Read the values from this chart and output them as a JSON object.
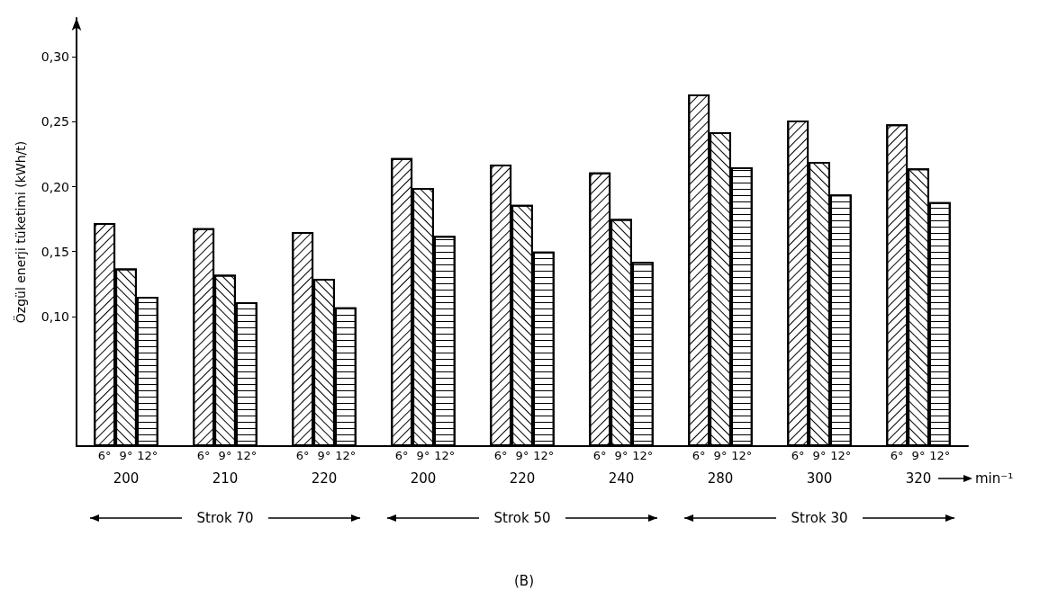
{
  "chart_data": {
    "type": "bar",
    "ylabel": "Özgül enerji tüketimi (kWh/t)",
    "xlabel": "min⁻¹",
    "categories": [
      "200",
      "210",
      "220",
      "200",
      "220",
      "240",
      "280",
      "300",
      "320"
    ],
    "series": [
      {
        "name": "6°",
        "color": "#ffffff",
        "values": [
          0.172,
          0.168,
          0.165,
          0.222,
          0.217,
          0.211,
          0.271,
          0.251,
          0.248
        ]
      },
      {
        "name": "9°",
        "color": "#ffffff",
        "values": [
          0.137,
          0.132,
          0.129,
          0.199,
          0.186,
          0.175,
          0.242,
          0.219,
          0.214
        ]
      },
      {
        "name": "12°",
        "color": "#ffffff",
        "values": [
          0.115,
          0.111,
          0.107,
          0.162,
          0.15,
          0.142,
          0.215,
          0.194,
          0.188
        ]
      }
    ],
    "ylim": [
      0,
      0.33
    ],
    "yticks": [
      {
        "value": 0.1,
        "label": "0,10"
      },
      {
        "value": 0.15,
        "label": "0,15"
      },
      {
        "value": 0.2,
        "label": "0,20"
      },
      {
        "value": 0.25,
        "label": "0,25"
      },
      {
        "value": 0.3,
        "label": "0,30"
      }
    ],
    "grid": false,
    "legend": false,
    "annotations": [
      "Strok 70",
      "Strok 50",
      "Strok 30",
      "(B)"
    ]
  }
}
